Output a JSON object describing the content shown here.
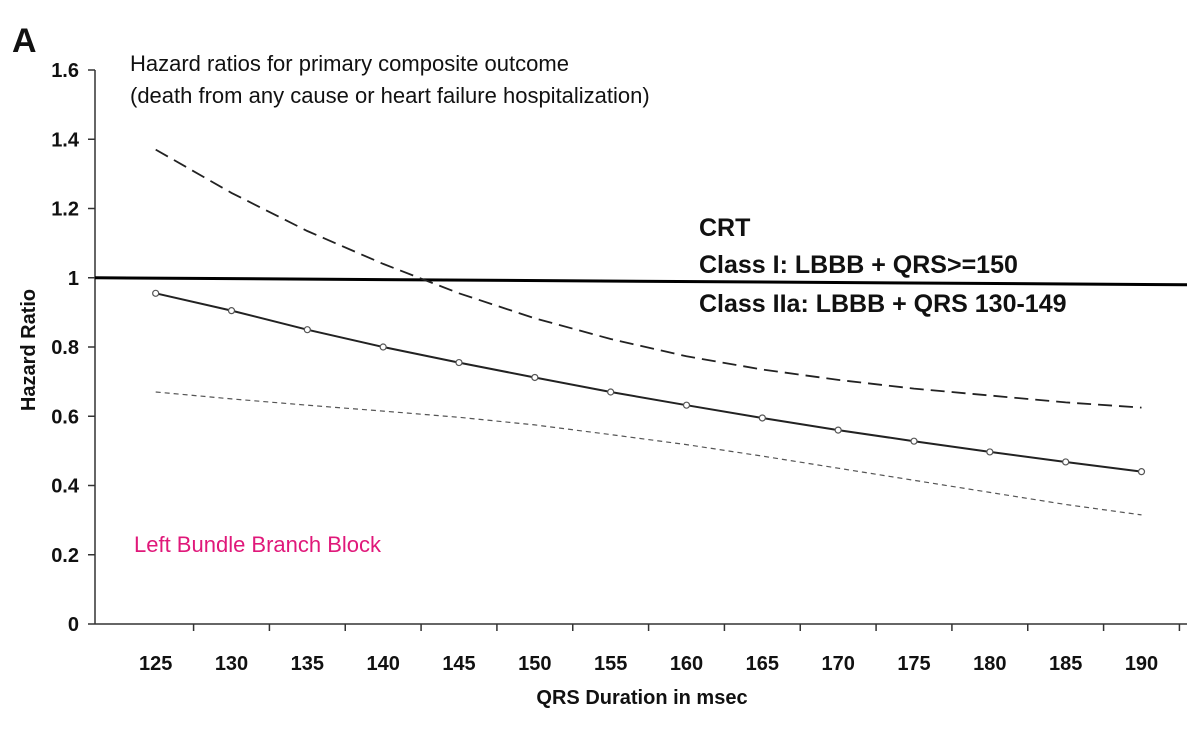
{
  "panel_label": "A",
  "chart_data": {
    "type": "line",
    "title": "Hazard ratios for primary composite outcome",
    "subtitle": "(death from any cause or heart failure hospitalization)",
    "xlabel": "QRS Duration in msec",
    "ylabel": "Hazard Ratio",
    "x": [
      125,
      130,
      135,
      140,
      145,
      150,
      155,
      160,
      165,
      170,
      175,
      180,
      185,
      190
    ],
    "xlim": [
      121,
      193
    ],
    "ylim": [
      0,
      1.6
    ],
    "yticks": [
      "0",
      "0.2",
      "0.4",
      "0.6",
      "0.8",
      "1",
      "1.2",
      "1.4",
      "1.6"
    ],
    "grid": false,
    "reference_line": 1,
    "series": [
      {
        "role": "estimate",
        "values": [
          0.955,
          0.905,
          0.85,
          0.8,
          0.755,
          0.712,
          0.67,
          0.632,
          0.595,
          0.56,
          0.528,
          0.497,
          0.468,
          0.44
        ]
      },
      {
        "role": "upper",
        "values": [
          1.37,
          1.245,
          1.135,
          1.04,
          0.955,
          0.883,
          0.823,
          0.773,
          0.735,
          0.705,
          0.68,
          0.66,
          0.64,
          0.625
        ]
      },
      {
        "role": "lower",
        "values": [
          0.67,
          0.65,
          0.632,
          0.615,
          0.597,
          0.575,
          0.547,
          0.518,
          0.485,
          0.45,
          0.415,
          0.38,
          0.345,
          0.315
        ]
      }
    ],
    "annotations": {
      "crt_heading": "CRT",
      "class_1": "Class I: LBBB + QRS>=150",
      "class_2a": "Class IIa: LBBB + QRS 130-149",
      "subgroup": "Left Bundle Branch Block",
      "subgroup_color": "#e0187a"
    }
  }
}
